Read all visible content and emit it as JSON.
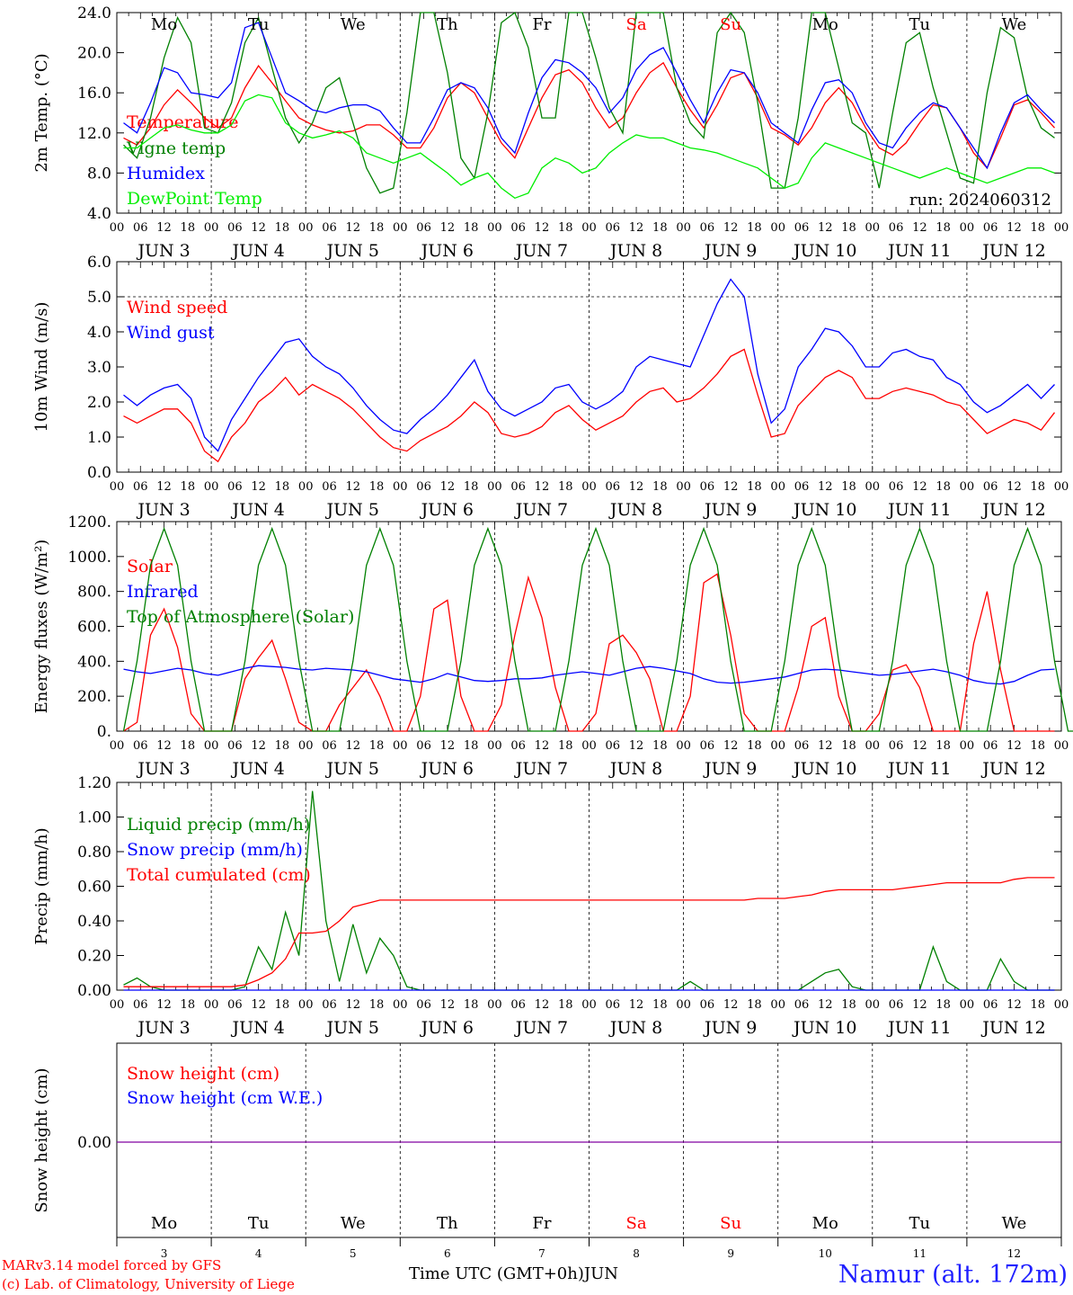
{
  "chart_data": [
    {
      "type": "line",
      "ylabel": "2m Temp. (°C)",
      "ylim": [
        4.0,
        24.0
      ],
      "yticks": [
        "4.0",
        "8.0",
        "12.0",
        "16.0",
        "20.0",
        "24.0"
      ],
      "run_label": "run: 2024060312",
      "series": [
        {
          "name": "Temperature",
          "color": "#ff0000",
          "values": [
            11.5,
            10.8,
            12.5,
            14.8,
            16.3,
            15.0,
            13.5,
            12.5,
            13.5,
            16.5,
            18.7,
            17.0,
            15.2,
            13.5,
            12.8,
            12.3,
            12.0,
            12.2,
            12.8,
            12.8,
            11.8,
            10.5,
            10.5,
            12.5,
            15.5,
            17.0,
            16.0,
            13.5,
            11.0,
            9.5,
            12.5,
            15.5,
            17.8,
            18.3,
            17.0,
            14.5,
            12.5,
            13.5,
            16.0,
            18.0,
            19.0,
            16.5,
            14.3,
            12.5,
            14.8,
            17.5,
            18.0,
            15.5,
            12.5,
            11.8,
            10.8,
            12.5,
            15.0,
            16.5,
            15.0,
            12.5,
            10.5,
            9.8,
            11.0,
            13.0,
            14.8,
            14.5,
            12.5,
            10.0,
            8.5,
            11.5,
            14.8,
            15.3,
            14.0,
            12.5
          ]
        },
        {
          "name": "Vigne temp",
          "color": "#008000",
          "values": [
            10.8,
            9.5,
            13.5,
            19.5,
            23.5,
            21.0,
            12.5,
            12.0,
            15.0,
            21.0,
            23.5,
            18.5,
            13.5,
            11.0,
            13.0,
            16.5,
            17.5,
            13.0,
            8.5,
            6.0,
            6.5,
            14.0,
            24.0,
            24.0,
            18.0,
            9.5,
            7.5,
            14.0,
            23.0,
            24.0,
            20.5,
            13.5,
            13.5,
            24.0,
            24.0,
            19.5,
            14.5,
            12.0,
            24.0,
            24.0,
            24.0,
            16.5,
            13.0,
            11.5,
            22.0,
            24.0,
            22.0,
            15.0,
            6.5,
            6.5,
            13.5,
            24.0,
            24.0,
            18.5,
            13.0,
            12.0,
            6.5,
            14.0,
            21.0,
            22.0,
            16.5,
            12.0,
            7.5,
            7.0,
            16.0,
            22.5,
            21.5,
            15.5,
            12.5,
            11.5
          ]
        },
        {
          "name": "Humidex",
          "color": "#0000ff",
          "values": [
            13.0,
            12.0,
            15.0,
            18.5,
            18.0,
            16.0,
            15.8,
            15.5,
            17.0,
            22.5,
            23.0,
            19.5,
            16.0,
            15.2,
            14.3,
            14.0,
            14.5,
            14.8,
            14.8,
            14.2,
            12.5,
            11.0,
            11.0,
            13.5,
            16.3,
            17.0,
            16.5,
            14.5,
            11.5,
            10.0,
            14.0,
            17.5,
            19.3,
            19.0,
            18.0,
            16.5,
            14.0,
            15.5,
            18.3,
            19.8,
            20.5,
            18.0,
            15.3,
            13.0,
            16.0,
            18.3,
            18.0,
            16.0,
            13.0,
            12.0,
            11.0,
            14.3,
            17.0,
            17.3,
            16.0,
            13.0,
            11.0,
            10.5,
            12.5,
            14.0,
            15.0,
            14.5,
            12.5,
            10.5,
            8.5,
            12.0,
            15.0,
            15.8,
            14.3,
            13.0
          ]
        },
        {
          "name": "DewPoint Temp",
          "color": "#00ee00",
          "values": [
            10.5,
            10.5,
            11.5,
            12.5,
            12.8,
            12.3,
            12.0,
            12.0,
            12.8,
            15.2,
            15.8,
            15.5,
            13.0,
            12.0,
            11.5,
            11.8,
            12.2,
            11.5,
            10.0,
            9.5,
            9.0,
            9.5,
            10.0,
            9.0,
            8.0,
            6.8,
            7.5,
            8.0,
            6.5,
            5.5,
            6.0,
            8.5,
            9.5,
            9.0,
            8.0,
            8.5,
            10.0,
            11.0,
            11.8,
            11.5,
            11.5,
            11.0,
            10.5,
            10.3,
            10.0,
            9.5,
            9.0,
            8.5,
            7.5,
            6.5,
            7.0,
            9.5,
            11.0,
            10.5,
            10.0,
            9.5,
            9.0,
            8.5,
            8.0,
            7.5,
            8.0,
            8.5,
            8.0,
            7.5,
            7.0,
            7.5,
            8.0,
            8.5,
            8.5,
            8.0
          ]
        }
      ]
    },
    {
      "type": "line",
      "ylabel": "10m Wind (m/s)",
      "ylim": [
        0.0,
        6.0
      ],
      "yticks": [
        "0.0",
        "1.0",
        "2.0",
        "3.0",
        "4.0",
        "5.0",
        "6.0"
      ],
      "series": [
        {
          "name": "Wind speed",
          "color": "#ff0000",
          "values": [
            1.6,
            1.4,
            1.6,
            1.8,
            1.8,
            1.4,
            0.6,
            0.3,
            1.0,
            1.4,
            2.0,
            2.3,
            2.7,
            2.2,
            2.5,
            2.3,
            2.1,
            1.8,
            1.4,
            1.0,
            0.7,
            0.6,
            0.9,
            1.1,
            1.3,
            1.6,
            2.0,
            1.7,
            1.1,
            1.0,
            1.1,
            1.3,
            1.7,
            1.9,
            1.5,
            1.2,
            1.4,
            1.6,
            2.0,
            2.3,
            2.4,
            2.0,
            2.1,
            2.4,
            2.8,
            3.3,
            3.5,
            2.2,
            1.0,
            1.1,
            1.9,
            2.3,
            2.7,
            2.9,
            2.7,
            2.1,
            2.1,
            2.3,
            2.4,
            2.3,
            2.2,
            2.0,
            1.9,
            1.5,
            1.1,
            1.3,
            1.5,
            1.4,
            1.2,
            1.7
          ]
        },
        {
          "name": "Wind gust",
          "color": "#0000ff",
          "values": [
            2.2,
            1.9,
            2.2,
            2.4,
            2.5,
            2.1,
            1.0,
            0.6,
            1.5,
            2.1,
            2.7,
            3.2,
            3.7,
            3.8,
            3.3,
            3.0,
            2.8,
            2.4,
            1.9,
            1.5,
            1.2,
            1.1,
            1.5,
            1.8,
            2.2,
            2.7,
            3.2,
            2.3,
            1.8,
            1.6,
            1.8,
            2.0,
            2.4,
            2.5,
            2.0,
            1.8,
            2.0,
            2.3,
            3.0,
            3.3,
            3.2,
            3.1,
            3.0,
            3.9,
            4.8,
            5.5,
            5.0,
            2.8,
            1.4,
            1.8,
            3.0,
            3.5,
            4.1,
            4.0,
            3.6,
            3.0,
            3.0,
            3.4,
            3.5,
            3.3,
            3.2,
            2.7,
            2.5,
            2.0,
            1.7,
            1.9,
            2.2,
            2.5,
            2.1,
            2.5
          ]
        }
      ]
    },
    {
      "type": "line",
      "ylabel": "Energy fluxes (W/m²)",
      "ylim": [
        0,
        1200
      ],
      "yticks": [
        "0.",
        "200.",
        "400.",
        "600.",
        "800.",
        "1000.",
        "1200."
      ],
      "series": [
        {
          "name": "Solar",
          "color": "#ff0000",
          "values": [
            0,
            50,
            550,
            700,
            480,
            100,
            0,
            0,
            0,
            300,
            420,
            520,
            300,
            50,
            0,
            0,
            150,
            250,
            350,
            200,
            0,
            0,
            200,
            700,
            750,
            200,
            0,
            0,
            150,
            550,
            880,
            650,
            250,
            0,
            0,
            100,
            500,
            550,
            450,
            300,
            0,
            0,
            200,
            850,
            900,
            550,
            100,
            0,
            0,
            0,
            250,
            600,
            650,
            200,
            0,
            0,
            100,
            350,
            380,
            250,
            0,
            0,
            0,
            500,
            800,
            350,
            0,
            0,
            0,
            0
          ]
        },
        {
          "name": "Infrared",
          "color": "#0000ff",
          "values": [
            355,
            340,
            330,
            345,
            360,
            350,
            330,
            320,
            340,
            360,
            375,
            370,
            365,
            355,
            350,
            360,
            355,
            350,
            340,
            320,
            300,
            290,
            280,
            300,
            330,
            310,
            290,
            285,
            290,
            300,
            300,
            305,
            320,
            330,
            340,
            330,
            320,
            340,
            360,
            370,
            360,
            345,
            330,
            300,
            280,
            275,
            280,
            290,
            300,
            310,
            330,
            350,
            355,
            350,
            340,
            330,
            320,
            325,
            335,
            345,
            355,
            340,
            320,
            290,
            275,
            270,
            285,
            320,
            350,
            355
          ]
        },
        {
          "name": "Top of Atmosphere (Solar)",
          "color": "#008000",
          "values": [
            0,
            400,
            950,
            1160,
            950,
            400,
            0,
            0,
            0,
            400,
            950,
            1160,
            950,
            400,
            0,
            0,
            0,
            400,
            950,
            1160,
            950,
            400,
            0,
            0,
            0,
            400,
            950,
            1160,
            950,
            400,
            0,
            0,
            0,
            400,
            950,
            1160,
            950,
            400,
            0,
            0,
            0,
            400,
            950,
            1160,
            950,
            400,
            0,
            0,
            0,
            400,
            950,
            1160,
            950,
            400,
            0,
            0,
            0,
            400,
            950,
            1160,
            950,
            400,
            0,
            0,
            0,
            400,
            950,
            1160,
            950,
            400,
            0,
            0
          ]
        }
      ]
    },
    {
      "type": "line",
      "ylabel": "Precip (mm/h)",
      "ylim": [
        0.0,
        1.2
      ],
      "yticks": [
        "0.00",
        "0.20",
        "0.40",
        "0.60",
        "0.80",
        "1.00",
        "1.20"
      ],
      "series": [
        {
          "name": "Liquid precip (mm/h)",
          "color": "#008000",
          "values": [
            0.03,
            0.07,
            0.02,
            0,
            0,
            0,
            0,
            0,
            0,
            0.02,
            0.25,
            0.12,
            0.45,
            0.2,
            1.15,
            0.4,
            0.05,
            0.38,
            0.1,
            0.3,
            0.2,
            0.02,
            0,
            0,
            0,
            0,
            0,
            0,
            0,
            0,
            0,
            0,
            0,
            0,
            0,
            0,
            0,
            0,
            0,
            0,
            0,
            0,
            0.05,
            0,
            0,
            0,
            0,
            0,
            0,
            0,
            0,
            0.05,
            0.1,
            0.12,
            0.02,
            0,
            0,
            0,
            0,
            0,
            0.25,
            0.05,
            0,
            0,
            0,
            0.18,
            0.05,
            0,
            0,
            0
          ]
        },
        {
          "name": "Snow precip (mm/h)",
          "color": "#0000ff",
          "values": [
            0,
            0,
            0,
            0,
            0,
            0,
            0,
            0,
            0,
            0,
            0,
            0,
            0,
            0,
            0,
            0,
            0,
            0,
            0,
            0,
            0,
            0,
            0,
            0,
            0,
            0,
            0,
            0,
            0,
            0,
            0,
            0,
            0,
            0,
            0,
            0,
            0,
            0,
            0,
            0,
            0,
            0,
            0,
            0,
            0,
            0,
            0,
            0,
            0,
            0,
            0,
            0,
            0,
            0,
            0,
            0,
            0,
            0,
            0,
            0,
            0,
            0,
            0,
            0,
            0,
            0,
            0,
            0,
            0,
            0
          ]
        },
        {
          "name": "Total cumulated (cm)",
          "color": "#ff0000",
          "values": [
            0.02,
            0.02,
            0.02,
            0.02,
            0.02,
            0.02,
            0.02,
            0.02,
            0.02,
            0.03,
            0.06,
            0.1,
            0.18,
            0.33,
            0.33,
            0.34,
            0.4,
            0.48,
            0.5,
            0.52,
            0.52,
            0.52,
            0.52,
            0.52,
            0.52,
            0.52,
            0.52,
            0.52,
            0.52,
            0.52,
            0.52,
            0.52,
            0.52,
            0.52,
            0.52,
            0.52,
            0.52,
            0.52,
            0.52,
            0.52,
            0.52,
            0.52,
            0.52,
            0.52,
            0.52,
            0.52,
            0.52,
            0.53,
            0.53,
            0.53,
            0.54,
            0.55,
            0.57,
            0.58,
            0.58,
            0.58,
            0.58,
            0.58,
            0.59,
            0.6,
            0.61,
            0.62,
            0.62,
            0.62,
            0.62,
            0.62,
            0.64,
            0.65,
            0.65,
            0.65
          ]
        }
      ]
    },
    {
      "type": "line",
      "ylabel": "Snow height (cm)",
      "yticks": [
        "0.00"
      ],
      "series": [
        {
          "name": "Snow height (cm)",
          "color": "#ff0000",
          "values": [
            0,
            0
          ]
        },
        {
          "name": "Snow height (cm W.E.)",
          "color": "#0000ff",
          "values": [
            0,
            0
          ]
        }
      ]
    }
  ],
  "x_axis": {
    "hour_ticks": [
      "00",
      "06",
      "12",
      "18"
    ],
    "dates": [
      "JUN 3",
      "JUN 4",
      "JUN 5",
      "JUN 6",
      "JUN 7",
      "JUN 8",
      "JUN 9",
      "JUN 10",
      "JUN 11",
      "JUN 12"
    ],
    "weekdays": [
      "Mo",
      "Tu",
      "We",
      "Th",
      "Fr",
      "Sa",
      "Su",
      "Mo",
      "Tu",
      "We"
    ],
    "weekend_color": "#ff0000",
    "day_numbers": [
      "3",
      "4",
      "5",
      "6",
      "7",
      "8",
      "9",
      "10",
      "11",
      "12"
    ],
    "title": "Time UTC (GMT+0h)",
    "month": "JUN"
  },
  "credits": {
    "line1": "MARv3.14 model forced by GFS",
    "line2": "(c) Lab. of Climatology, University of Liege"
  },
  "station": "Namur (alt. 172m)"
}
